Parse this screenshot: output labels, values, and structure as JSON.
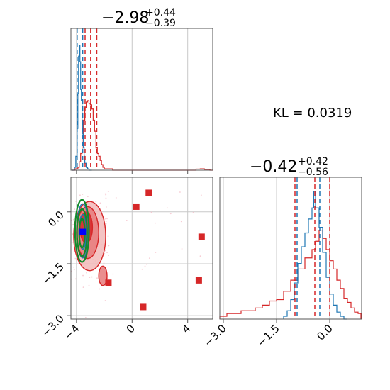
{
  "colors": {
    "red": "#d62728",
    "blue": "#1f77b4",
    "green": "#138a2b",
    "marker_blue": "#0000ff",
    "grid": "#c8c8c8",
    "axis": "#555555"
  },
  "kl_label": "KL = 0.0319",
  "chart_data": [
    {
      "type": "histogram",
      "panel": "param1-marginal",
      "title_main": "−2.98",
      "title_sup": "+0.44",
      "title_sub": "−0.39",
      "xlim": [
        -4.4,
        5.8
      ],
      "grid_x": [
        -4,
        0,
        4
      ],
      "quantiles": {
        "blue": [
          -3.95,
          -3.55
        ],
        "red": [
          -3.38,
          -2.98,
          -2.54
        ]
      },
      "series": [
        {
          "name": "",
          "color": "red",
          "x": [
            -4.3,
            -4.1,
            -3.9,
            -3.8,
            -3.7,
            -3.6,
            -3.5,
            -3.4,
            -3.3,
            -3.2,
            -3.1,
            -3.0,
            -2.9,
            -2.8,
            -2.7,
            -2.6,
            -2.5,
            -2.4,
            -2.3,
            -2.2,
            -2.1,
            -2.0,
            -1.8,
            -1.4,
            -1.0,
            0.0,
            1.0,
            2.0,
            3.0,
            4.0,
            4.3,
            4.6,
            4.9,
            5.2,
            5.6
          ],
          "y": [
            0,
            0.01,
            0.02,
            0.06,
            0.12,
            0.24,
            0.36,
            0.45,
            0.49,
            0.5,
            0.48,
            0.47,
            0.44,
            0.36,
            0.28,
            0.16,
            0.12,
            0.1,
            0.07,
            0.04,
            0.02,
            0.01,
            0.01,
            0,
            0,
            0,
            0,
            0,
            0,
            0,
            0,
            0.008,
            0.01,
            0.006,
            0
          ]
        },
        {
          "name": "",
          "color": "blue",
          "x": [
            -4.3,
            -4.15,
            -4.05,
            -3.95,
            -3.9,
            -3.85,
            -3.8,
            -3.75,
            -3.7,
            -3.65,
            -3.6,
            -3.55,
            -3.5,
            -3.45,
            -3.4,
            -3.3,
            -3.2,
            -3.1
          ],
          "y": [
            0,
            0.02,
            0.1,
            0.3,
            0.55,
            0.82,
            0.9,
            0.78,
            0.58,
            0.5,
            0.36,
            0.26,
            0.16,
            0.1,
            0.05,
            0.02,
            0.01,
            0
          ]
        }
      ]
    },
    {
      "type": "scatter",
      "panel": "joint-2d",
      "xlim": [
        -4.4,
        5.8
      ],
      "ylim": [
        -3.1,
        1.0
      ],
      "x_ticks": [
        -4,
        0,
        4
      ],
      "x_tick_labels": [
        "−4",
        "0",
        "4"
      ],
      "y_ticks": [
        0.0,
        -1.5,
        -3.0
      ],
      "y_tick_labels": [
        "0.0",
        "−1.5",
        "−3.0"
      ],
      "red_markers": {
        "x": [
          1.2,
          0.3,
          5.0,
          4.8,
          -1.7,
          0.8
        ],
        "y": [
          0.55,
          0.15,
          -0.72,
          -1.98,
          -2.05,
          -2.75
        ]
      },
      "blue_marker": {
        "x": [
          -3.55
        ],
        "y": [
          -0.58
        ]
      },
      "red_contours": [
        {
          "cx": -3.05,
          "cy": -0.7,
          "rx": 1.15,
          "ry": 1.0,
          "level": "outer"
        },
        {
          "cx": -3.2,
          "cy": -0.6,
          "rx": 0.8,
          "ry": 0.75,
          "level": "mid"
        },
        {
          "cx": -3.3,
          "cy": -0.45,
          "rx": 0.45,
          "ry": 0.45,
          "level": "inner"
        },
        {
          "cx": -2.1,
          "cy": -1.85,
          "rx": 0.3,
          "ry": 0.28,
          "level": "mid"
        }
      ],
      "green_contours": [
        {
          "cx": -3.6,
          "cy": -0.55,
          "rx": 0.5,
          "ry": 0.9
        },
        {
          "cx": -3.6,
          "cy": -0.6,
          "rx": 0.36,
          "ry": 0.68
        },
        {
          "cx": -3.6,
          "cy": -0.62,
          "rx": 0.2,
          "ry": 0.42
        }
      ],
      "blue_contours": [
        {
          "cx": -3.55,
          "cy": -0.55,
          "rx": 0.42,
          "ry": 0.78
        },
        {
          "cx": -3.55,
          "cy": -0.58,
          "rx": 0.26,
          "ry": 0.5
        }
      ]
    },
    {
      "type": "histogram",
      "panel": "param2-marginal",
      "title_main": "−0.42",
      "title_sup": "+0.42",
      "title_sub": "−0.56",
      "xlim": [
        -3.1,
        0.9
      ],
      "x_ticks": [
        -3.0,
        -1.5,
        0.0
      ],
      "x_tick_labels": [
        "−3.0",
        "−1.5",
        "0.0"
      ],
      "quantiles": {
        "blue": [
          -0.92,
          -0.28
        ],
        "red": [
          -0.98,
          -0.42,
          0.0
        ]
      },
      "series": [
        {
          "name": "",
          "color": "red",
          "x": [
            -3.1,
            -2.9,
            -2.7,
            -2.5,
            -2.3,
            -2.1,
            -1.9,
            -1.7,
            -1.5,
            -1.3,
            -1.1,
            -0.9,
            -0.7,
            -0.5,
            -0.4,
            -0.3,
            -0.2,
            -0.1,
            0.0,
            0.1,
            0.2,
            0.3,
            0.4,
            0.5,
            0.6,
            0.7,
            0.8
          ],
          "y": [
            0.02,
            0.04,
            0.04,
            0.06,
            0.06,
            0.08,
            0.1,
            0.13,
            0.14,
            0.2,
            0.28,
            0.36,
            0.44,
            0.5,
            0.56,
            0.64,
            0.58,
            0.5,
            0.42,
            0.36,
            0.28,
            0.22,
            0.15,
            0.12,
            0.08,
            0.05,
            0.04
          ]
        },
        {
          "name": "",
          "color": "blue",
          "x": [
            -1.3,
            -1.2,
            -1.1,
            -1.0,
            -0.9,
            -0.8,
            -0.7,
            -0.6,
            -0.5,
            -0.45,
            -0.4,
            -0.3,
            -0.2,
            -0.1,
            0.0,
            0.1,
            0.2,
            0.3,
            0.4
          ],
          "y": [
            0.02,
            0.06,
            0.14,
            0.26,
            0.4,
            0.52,
            0.62,
            0.72,
            0.8,
            0.92,
            0.8,
            0.66,
            0.48,
            0.3,
            0.18,
            0.1,
            0.05,
            0.02,
            0
          ]
        }
      ]
    }
  ]
}
